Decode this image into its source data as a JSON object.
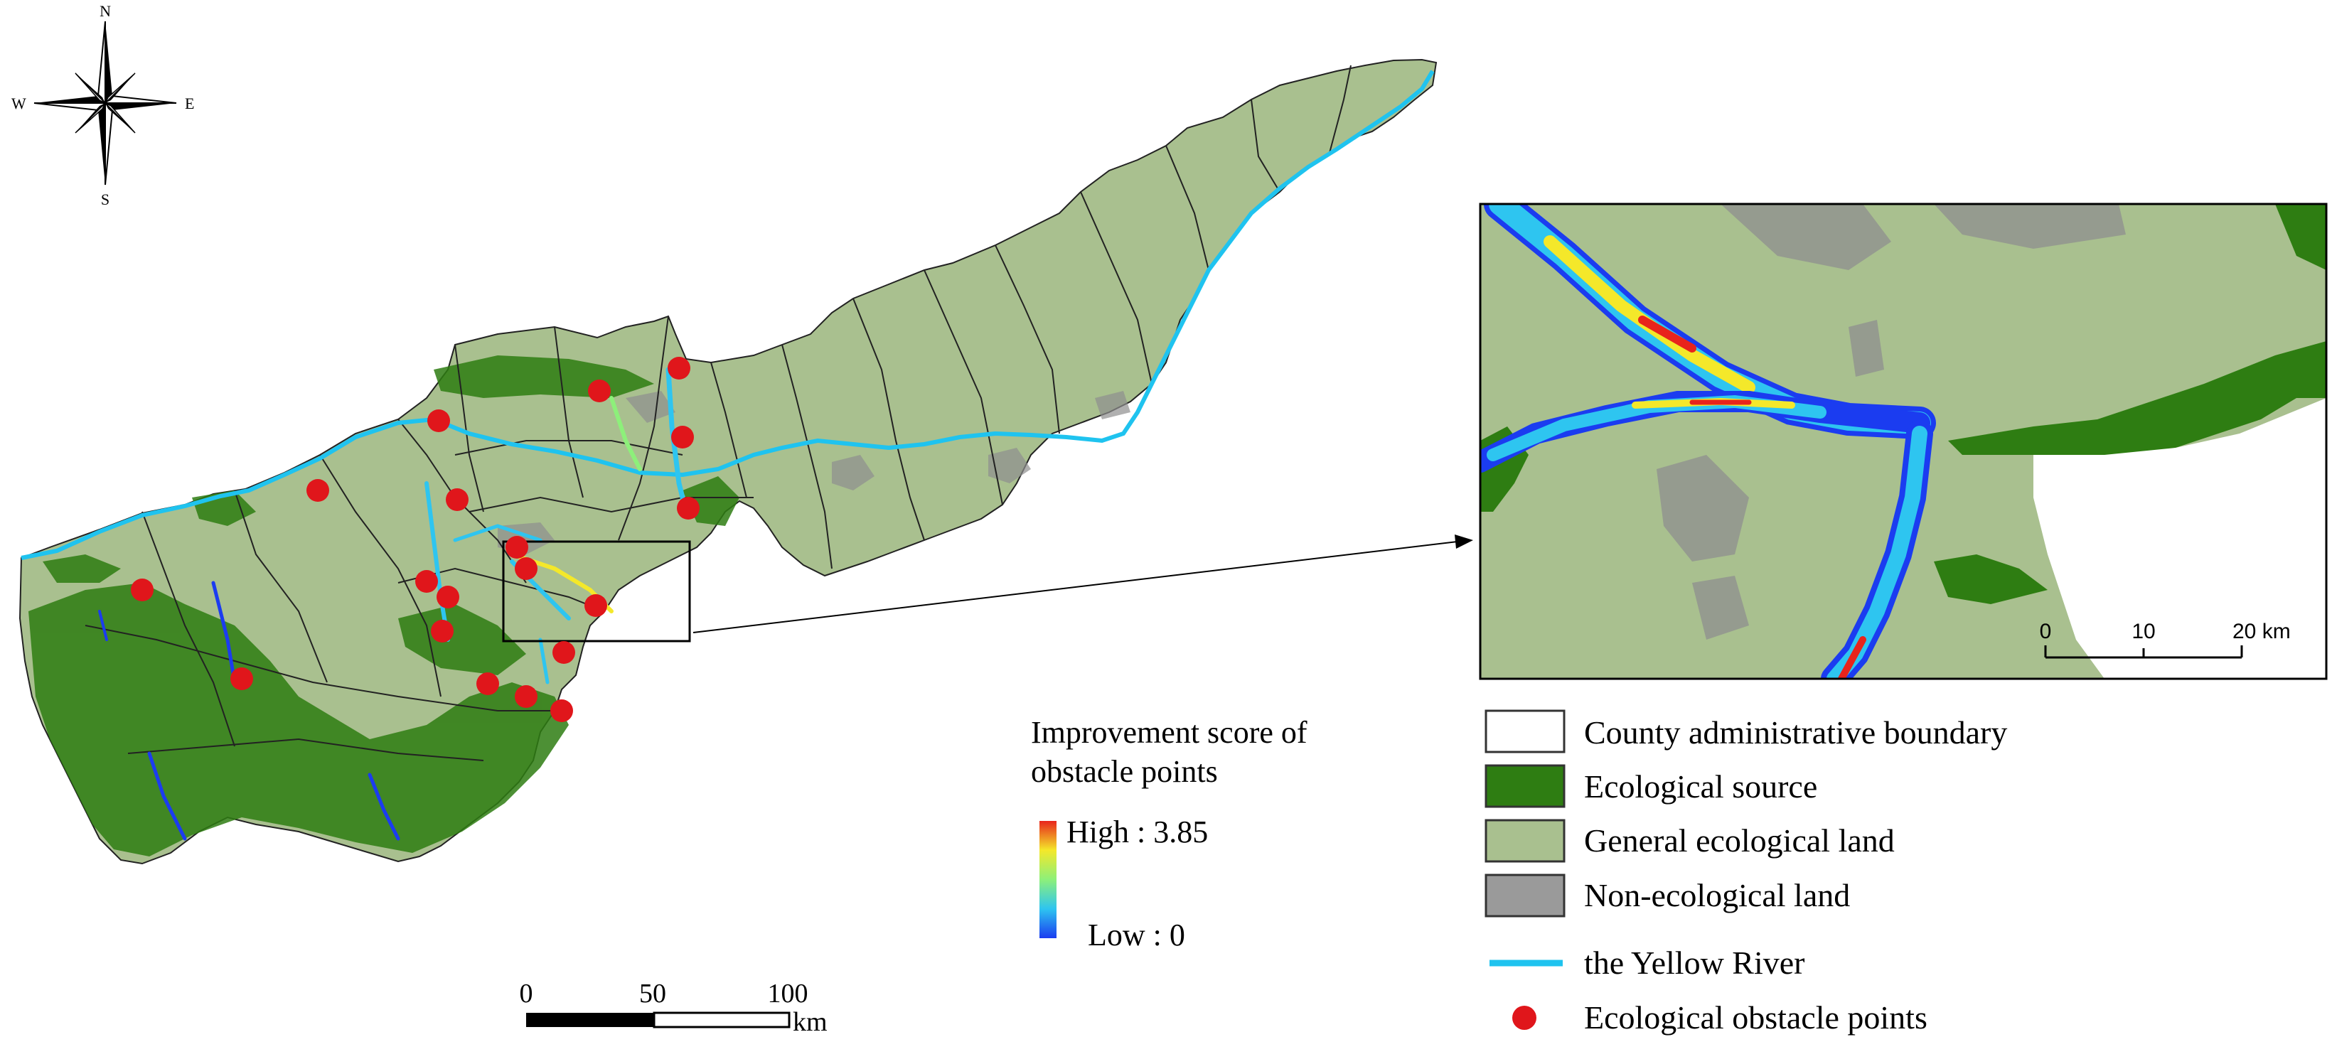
{
  "compass": {
    "north": "N",
    "south": "S",
    "east": "E",
    "west": "W"
  },
  "main_scalebar": {
    "ticks": [
      "0",
      "50",
      "100"
    ],
    "unit": "km"
  },
  "inset_scalebar": {
    "ticks": [
      "0",
      "10",
      "20 km"
    ]
  },
  "gradient_legend": {
    "title_line1": "Improvement score of",
    "title_line2": "obstacle points",
    "high": "High : 3.85",
    "low": "Low : 0"
  },
  "legend": {
    "items": [
      {
        "label": "County administrative boundary",
        "color": "#ffffff"
      },
      {
        "label": "Ecological source",
        "color": "#2e7d12"
      },
      {
        "label": "General ecological land",
        "color": "#a9c08f"
      },
      {
        "label": "Non-ecological land",
        "color": "#9a9a9a"
      },
      {
        "label": "the Yellow River",
        "color": "#1fc3ef"
      },
      {
        "label": "Ecological obstacle points",
        "color": "#e0161b"
      }
    ]
  },
  "colors": {
    "ecological_source": "#2e7d12",
    "general_ecological_land": "#a9c08f",
    "non_ecological_land": "#9a9a9a",
    "yellow_river": "#1fc3ef",
    "obstacle_point": "#e0161b"
  }
}
